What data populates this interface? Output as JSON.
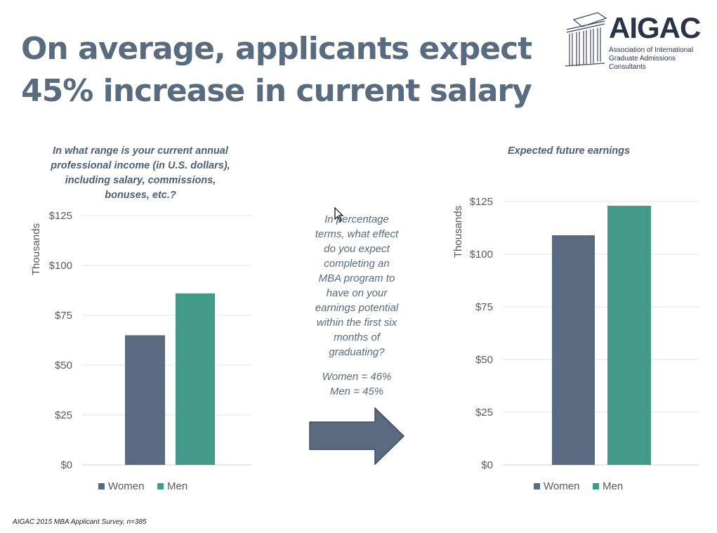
{
  "title": {
    "line1": "On average, applicants expect",
    "line2": "45% increase in current salary"
  },
  "logo": {
    "name": "AIGAC",
    "subtitle_line1": "Association of International",
    "subtitle_line2": "Graduate Admissions Consultants"
  },
  "colors": {
    "title": "#596b7f",
    "women": "#5a6b80",
    "men": "#449a88",
    "arrow": "#5a6b80"
  },
  "middle": {
    "question_lines": [
      "In percentage",
      "terms, what effect",
      "do you expect",
      "completing  an",
      "MBA program to",
      "have on your",
      "earnings potential",
      "within the first six",
      "months of",
      "graduating?"
    ],
    "women_result": "Women = 46%",
    "men_result": "Men = 45%"
  },
  "footnote": "AIGAC 2015 MBA Applicant Survey, n=385",
  "chart_data": [
    {
      "type": "bar",
      "title_lines": [
        "In what range is your current annual",
        "professional income (in U.S. dollars),",
        "including salary, commissions,",
        "bonuses, etc.?"
      ],
      "ylabel": "Thousands",
      "yticks": [
        "$0",
        "$25",
        "$50",
        "$75",
        "$100",
        "$125"
      ],
      "ylim": [
        0,
        125
      ],
      "grid": true,
      "series": [
        {
          "name": "Women",
          "values": [
            65
          ]
        },
        {
          "name": "Men",
          "values": [
            86
          ]
        }
      ],
      "legend": [
        "Women",
        "Men"
      ],
      "legend_position": "bottom"
    },
    {
      "type": "bar",
      "title_lines": [
        "Expected future earnings"
      ],
      "ylabel": "Thousands",
      "yticks": [
        "$0",
        "$25",
        "$50",
        "$75",
        "$100",
        "$125"
      ],
      "ylim": [
        0,
        125
      ],
      "grid": true,
      "series": [
        {
          "name": "Women",
          "values": [
            109
          ]
        },
        {
          "name": "Men",
          "values": [
            123
          ]
        }
      ],
      "legend": [
        "Women",
        "Men"
      ],
      "legend_position": "bottom"
    }
  ]
}
